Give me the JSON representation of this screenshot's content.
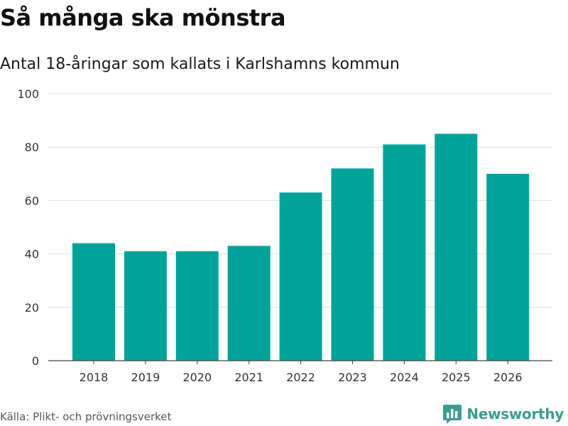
{
  "header": {
    "title": "Så många ska mönstra",
    "subtitle": "Antal 18-åringar som kallats i Karlshamns kommun"
  },
  "footer": {
    "source": "Källa: Plikt- och prövningsverket",
    "brand": "Newsworthy",
    "brand_icon": "bar-chart-speech-bubble-icon",
    "brand_color": "#3d9c93"
  },
  "chart_data": {
    "type": "bar",
    "title": "Så många ska mönstra",
    "subtitle": "Antal 18-åringar som kallats i Karlshamns kommun",
    "xlabel": "",
    "ylabel": "",
    "categories": [
      "2018",
      "2019",
      "2020",
      "2021",
      "2022",
      "2023",
      "2024",
      "2025",
      "2026"
    ],
    "values": [
      44,
      41,
      41,
      43,
      63,
      72,
      81,
      85,
      70
    ],
    "ylim": [
      0,
      100
    ],
    "yticks": [
      0,
      20,
      40,
      60,
      80,
      100
    ],
    "grid": true,
    "bar_color": "#00a398"
  }
}
